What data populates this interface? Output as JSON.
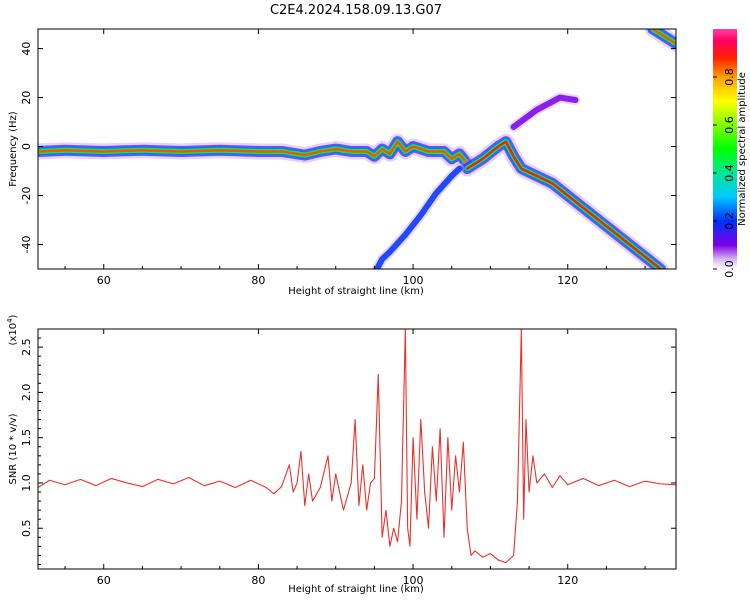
{
  "figure_title": "C2E4.2024.158.09.13.G07",
  "chart_data": [
    {
      "type": "heatmap",
      "title": "C2E4.2024.158.09.13.G07",
      "xlabel": "Height of straight line (km)",
      "ylabel": "Frequency (Hz)",
      "xlim": [
        51.5,
        134
      ],
      "ylim": [
        -50,
        48
      ],
      "xticks": [
        60,
        80,
        100,
        120
      ],
      "yticks": [
        -40,
        -20,
        0,
        20,
        40
      ],
      "grid": false,
      "colorbar": {
        "label": "Normalized spectral amplitude",
        "range": [
          0,
          1
        ],
        "ticks": [
          0.0,
          0.2,
          0.4,
          0.6,
          0.8
        ],
        "colormap": "gist_ncar-like (white→purple→blue→cyan→green→yellow→orange→red→magenta)"
      },
      "traces": [
        {
          "points": [
            [
              51.5,
              -2
            ],
            [
              55,
              -1.5
            ],
            [
              60,
              -2
            ],
            [
              65,
              -1.5
            ],
            [
              70,
              -2
            ],
            [
              75,
              -1.5
            ],
            [
              80,
              -2
            ],
            [
              83,
              -2
            ],
            [
              86,
              -3.5
            ],
            [
              88,
              -2
            ],
            [
              90,
              -1
            ],
            [
              92,
              -2
            ],
            [
              94,
              -2
            ],
            [
              95,
              -4
            ],
            [
              96,
              -1
            ],
            [
              97,
              -3
            ],
            [
              98,
              2
            ],
            [
              99,
              -2
            ],
            [
              100,
              0
            ],
            [
              102,
              -2
            ],
            [
              104,
              -2
            ],
            [
              105,
              -5
            ],
            [
              106,
              -3
            ],
            [
              107,
              -7
            ]
          ],
          "intensity": 0.85
        },
        {
          "points": [
            [
              107,
              -9
            ],
            [
              109,
              -5
            ],
            [
              111,
              0
            ],
            [
              112,
              2
            ],
            [
              113,
              -4
            ],
            [
              114,
              -9
            ],
            [
              116,
              -12
            ],
            [
              118,
              -15
            ],
            [
              120,
              -20
            ],
            [
              122,
              -25
            ],
            [
              124,
              -30
            ],
            [
              126,
              -35
            ],
            [
              128,
              -40
            ],
            [
              130,
              -45
            ],
            [
              132,
              -50
            ]
          ],
          "intensity": 0.9
        },
        {
          "points": [
            [
              131,
              48
            ],
            [
              132,
              46
            ],
            [
              133,
              44
            ],
            [
              134,
              42
            ]
          ],
          "intensity": 0.85
        },
        {
          "points": [
            [
              95,
              -52
            ],
            [
              96,
              -46
            ],
            [
              97,
              -43
            ],
            [
              99,
              -36
            ],
            [
              101,
              -28
            ],
            [
              103,
              -19
            ],
            [
              105,
              -12
            ],
            [
              106,
              -9
            ]
          ],
          "intensity": 0.2
        },
        {
          "points": [
            [
              113,
              8
            ],
            [
              116,
              15
            ],
            [
              119,
              20
            ],
            [
              121,
              19
            ]
          ],
          "intensity": 0.1
        }
      ]
    },
    {
      "type": "line",
      "xlabel": "Height of straight line (km)",
      "ylabel": "SNR (10 * v/v)",
      "y_multiplier": "(x10",
      "y_multiplier_exp": "4",
      "y_multiplier_close": ")",
      "xlim": [
        51.5,
        134
      ],
      "ylim": [
        0.05,
        2.7
      ],
      "xticks": [
        60,
        80,
        100,
        120
      ],
      "yticks": [
        0.5,
        1.0,
        1.5,
        2.0,
        2.5
      ],
      "grid": false,
      "series": [
        {
          "color": "#e8322e",
          "x": [
            51.5,
            53,
            55,
            57,
            59,
            61,
            63,
            65,
            67,
            69,
            71,
            73,
            75,
            77,
            79,
            81,
            82,
            83,
            84,
            84.5,
            85,
            85.5,
            86,
            86.5,
            87,
            88,
            89,
            89.5,
            90,
            90.5,
            91,
            92,
            92.5,
            93,
            93.5,
            94,
            94.5,
            95,
            95.5,
            96,
            96.5,
            97,
            97.5,
            98,
            98.5,
            99,
            99.3,
            99.6,
            100,
            100.5,
            101,
            101.5,
            102,
            102.5,
            103,
            103.5,
            104,
            104.5,
            105,
            105.5,
            106,
            106.5,
            107,
            107.5,
            108,
            109,
            110,
            111,
            112,
            113,
            113.5,
            114,
            114.3,
            114.6,
            115,
            115.5,
            116,
            117,
            118,
            119,
            120,
            122,
            124,
            126,
            128,
            130,
            132,
            134
          ],
          "y": [
            0.95,
            1.03,
            0.98,
            1.04,
            0.97,
            1.05,
            1.0,
            0.96,
            1.04,
            0.99,
            1.06,
            0.97,
            1.02,
            0.95,
            1.03,
            0.95,
            0.88,
            0.96,
            1.2,
            0.9,
            1.0,
            1.35,
            0.75,
            1.1,
            0.8,
            0.95,
            1.3,
            0.8,
            1.1,
            0.9,
            0.7,
            1.0,
            1.7,
            0.75,
            1.2,
            0.7,
            1.0,
            1.05,
            2.2,
            0.4,
            0.7,
            0.3,
            0.5,
            0.35,
            0.8,
            2.7,
            0.5,
            0.3,
            1.5,
            0.6,
            1.7,
            0.9,
            0.5,
            1.4,
            0.8,
            1.6,
            0.4,
            1.5,
            0.7,
            1.3,
            0.9,
            1.45,
            0.5,
            0.2,
            0.25,
            0.18,
            0.22,
            0.15,
            0.12,
            0.2,
            0.8,
            2.7,
            0.6,
            1.7,
            0.9,
            1.3,
            1.0,
            1.1,
            0.95,
            1.08,
            0.98,
            1.05,
            0.97,
            1.03,
            0.96,
            1.02,
            0.99,
            0.98
          ]
        }
      ]
    }
  ]
}
